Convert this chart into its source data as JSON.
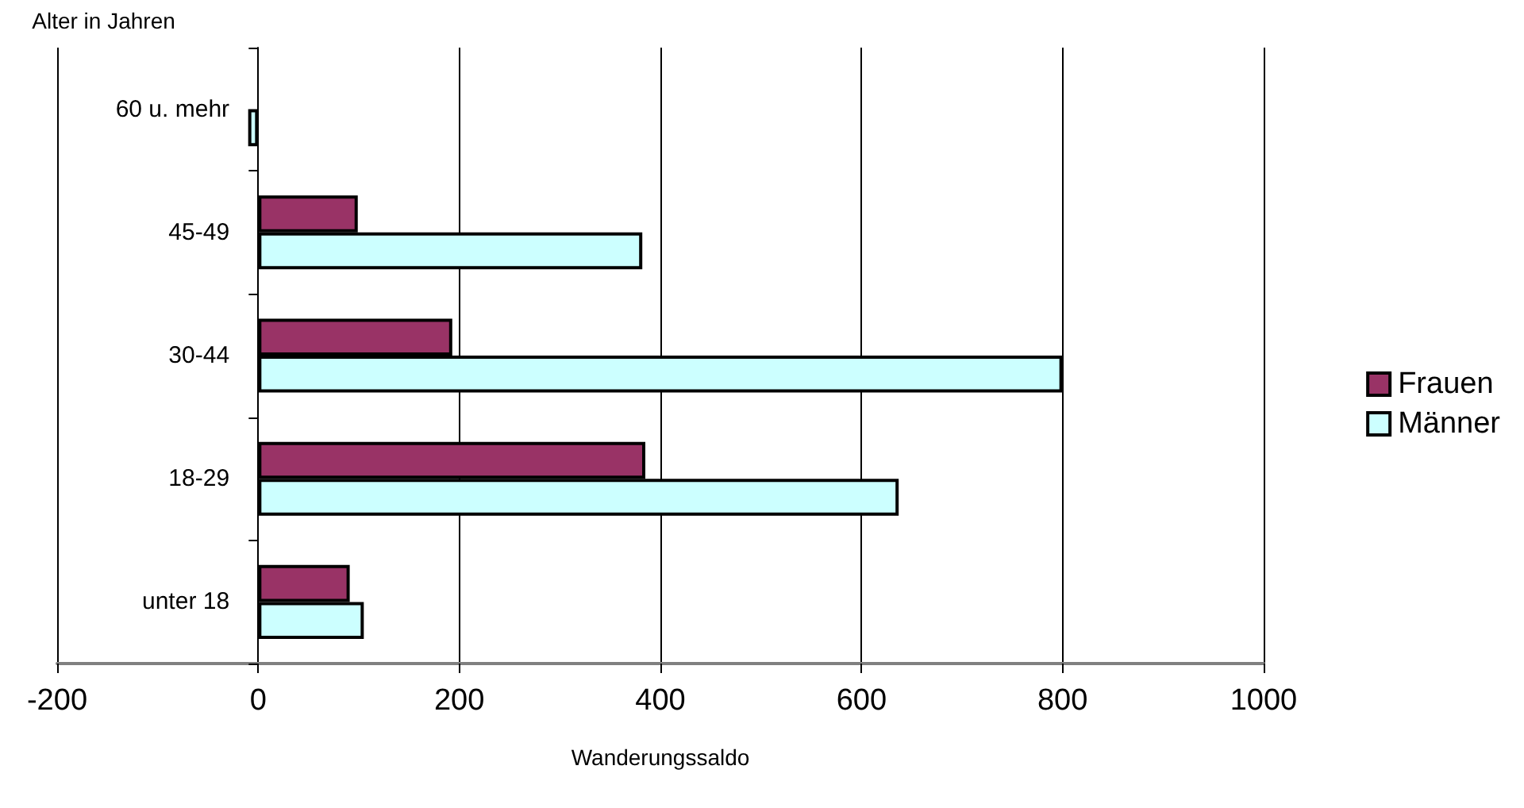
{
  "chart_data": {
    "type": "bar",
    "orientation": "horizontal",
    "xlabel": "Wanderungssaldo",
    "ylabel": "Alter in Jahren",
    "categories": [
      "60 u. mehr",
      "45-49",
      "30-44",
      "18-29",
      "unter 18"
    ],
    "series": [
      {
        "name": "Frauen",
        "color": "#993366",
        "values": [
          null,
          99,
          193,
          385,
          91
        ]
      },
      {
        "name": "Männer",
        "color": "#ccffff",
        "values": [
          -10,
          382,
          800,
          637,
          105
        ]
      }
    ],
    "xlim": [
      -200,
      1000
    ],
    "xticks": [
      -200,
      0,
      200,
      400,
      600,
      800,
      1000
    ],
    "grid": "x",
    "legend": "right"
  }
}
